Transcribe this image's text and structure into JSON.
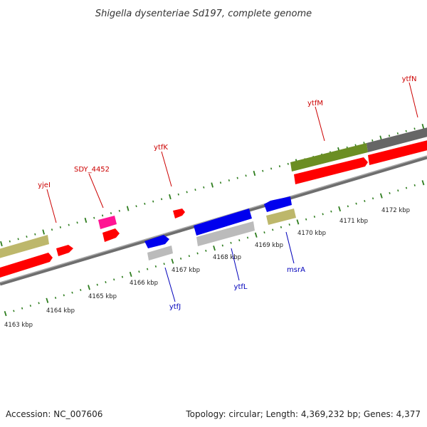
{
  "title": "Shigella dysenteriae Sd197, complete genome",
  "footer": {
    "accession": "Accession: NC_007606",
    "summary": "Topology: circular; Length: 4,369,232 bp; Genes: 4,377"
  },
  "colors": {
    "background": "#ffffff",
    "backbone": "#8a8a8a",
    "tick": "#2e7d1e",
    "forward_label": "#cc0000",
    "reverse_label": "#0000bb",
    "gene_red": "#ff0000",
    "gene_magenta": "#ff1493",
    "gene_blue": "#0000ee",
    "gene_olive": "#bdb76b",
    "gene_gray": "#bbbbbb",
    "gene_darkolive": "#6b8e23",
    "gene_darkgray": "#666666"
  },
  "scale_labels": [
    "4163 kbp",
    "4164 kbp",
    "4165 kbp",
    "4166 kbp",
    "4167 kbp",
    "4168 kbp",
    "4169 kbp",
    "4170 kbp",
    "4171 kbp",
    "4172 kbp"
  ],
  "forward_labels": [
    "yjeI",
    "SDY_4452",
    "ytfK",
    "ytfM",
    "ytfN"
  ],
  "reverse_labels": [
    "ytfJ",
    "ytfL",
    "msrA"
  ]
}
